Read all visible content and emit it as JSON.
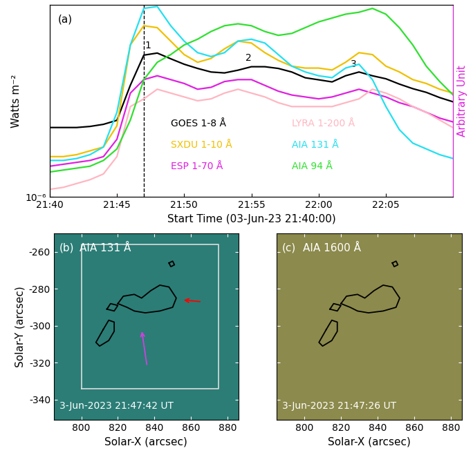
{
  "chart_data": [
    {
      "type": "line",
      "panel_label": "(a)",
      "x_label": "Start Time (03-Jun-23 21:40:00)",
      "y_label": "Watts m⁻²",
      "y2_label": "Arbitrary Unit",
      "x": [
        0,
        1,
        2,
        3,
        4,
        5,
        6,
        7,
        8,
        9,
        10,
        11,
        12,
        13,
        14,
        15,
        16,
        17,
        18,
        19,
        20,
        21,
        22,
        23,
        24,
        25,
        26,
        27,
        28,
        29,
        30
      ],
      "xlim": [
        0,
        30
      ],
      "xticks": [
        {
          "value": 0,
          "label": "21:40"
        },
        {
          "value": 5,
          "label": "21:45"
        },
        {
          "value": 10,
          "label": "21:50"
        },
        {
          "value": 15,
          "label": "21:55"
        },
        {
          "value": 20,
          "label": "22:00"
        },
        {
          "value": 25,
          "label": "22:05"
        }
      ],
      "log": "y",
      "ylim": [
        1e-06,
        2e-05
      ],
      "yticks": [
        {
          "value": 1e-06,
          "label": "10⁻⁶"
        }
      ],
      "y2lim": [
        0,
        1
      ],
      "vline": 7,
      "annotations": [
        {
          "text": "1",
          "x": 7.3
        },
        {
          "text": "2",
          "x": 14.8
        },
        {
          "text": "3",
          "x": 22.6
        }
      ],
      "series": [
        {
          "name": "GOES 1-8 Å",
          "color": "#000000",
          "values": [
            2.95e-06,
            2.95e-06,
            2.95e-06,
            3e-06,
            3.1e-06,
            3.3e-06,
            5.7e-06,
            9.1e-06,
            9.4e-06,
            8.6e-06,
            7.9e-06,
            7.4e-06,
            7e-06,
            6.9e-06,
            7.2e-06,
            7.6e-06,
            7.6e-06,
            7.4e-06,
            7e-06,
            6.4e-06,
            6.2e-06,
            6e-06,
            6.6e-06,
            7e-06,
            6.6e-06,
            6.3e-06,
            5.8e-06,
            5.4e-06,
            5.1e-06,
            4.7e-06,
            4.4e-06
          ]
        },
        {
          "name": "SXDU 1-10 Å",
          "color": "#f0c000",
          "axis": "y2",
          "values": [
            0.21,
            0.21,
            0.22,
            0.24,
            0.26,
            0.37,
            0.79,
            0.89,
            0.88,
            0.81,
            0.74,
            0.7,
            0.72,
            0.77,
            0.81,
            0.8,
            0.75,
            0.71,
            0.68,
            0.67,
            0.67,
            0.66,
            0.7,
            0.75,
            0.74,
            0.68,
            0.65,
            0.61,
            0.59,
            0.56,
            0.54
          ]
        },
        {
          "name": "ESP 1-70 Å",
          "color": "#e020e0",
          "axis": "y2",
          "values": [
            0.16,
            0.17,
            0.18,
            0.19,
            0.21,
            0.3,
            0.54,
            0.61,
            0.63,
            0.61,
            0.59,
            0.56,
            0.57,
            0.6,
            0.61,
            0.61,
            0.58,
            0.55,
            0.53,
            0.52,
            0.51,
            0.52,
            0.54,
            0.56,
            0.54,
            0.52,
            0.49,
            0.47,
            0.44,
            0.41,
            0.39
          ]
        },
        {
          "name": "LYRA 1-200 Å",
          "color": "#ffb6c1",
          "axis": "y2",
          "values": [
            0.04,
            0.05,
            0.07,
            0.09,
            0.12,
            0.21,
            0.47,
            0.51,
            0.56,
            0.54,
            0.52,
            0.5,
            0.51,
            0.54,
            0.56,
            0.54,
            0.52,
            0.49,
            0.47,
            0.47,
            0.47,
            0.47,
            0.49,
            0.51,
            0.56,
            0.54,
            0.51,
            0.47,
            0.44,
            0.4,
            0.36
          ]
        },
        {
          "name": "AIA 131 Å",
          "color": "#22e0f0",
          "axis": "y2",
          "values": [
            0.19,
            0.19,
            0.2,
            0.22,
            0.26,
            0.44,
            0.79,
            0.98,
            0.99,
            0.89,
            0.81,
            0.75,
            0.73,
            0.75,
            0.81,
            0.82,
            0.8,
            0.74,
            0.68,
            0.65,
            0.63,
            0.62,
            0.67,
            0.69,
            0.61,
            0.47,
            0.35,
            0.28,
            0.25,
            0.22,
            0.2
          ]
        },
        {
          "name": "AIA 94 Å",
          "color": "#30e030",
          "axis": "y2",
          "values": [
            0.13,
            0.14,
            0.15,
            0.16,
            0.19,
            0.25,
            0.4,
            0.61,
            0.7,
            0.74,
            0.79,
            0.82,
            0.86,
            0.89,
            0.9,
            0.89,
            0.86,
            0.84,
            0.85,
            0.88,
            0.91,
            0.93,
            0.95,
            0.96,
            0.98,
            0.95,
            0.88,
            0.79,
            0.68,
            0.6,
            0.53
          ]
        }
      ]
    },
    {
      "type": "image",
      "panel_label": "(b)",
      "title": "AIA 131 Å",
      "time": "3-Jun-2023 21:47:42 UT",
      "color": "#2b7d76",
      "x_label": "Solar-X (arcsec)",
      "y_label": "Solar-Y (arcsec)",
      "xlim": [
        785,
        886
      ],
      "ylim": [
        -351,
        -250
      ],
      "xticks": [
        800,
        820,
        840,
        860,
        880
      ],
      "yticks": [
        -340,
        -320,
        -300,
        -280,
        -260
      ],
      "box": {
        "x": [
          800,
          875
        ],
        "y": [
          -334,
          -256
        ]
      },
      "contours": [
        {
          "x": [
            820,
            823,
            829,
            833,
            838,
            843,
            848,
            852,
            850,
            843,
            835,
            829,
            825
          ],
          "y": [
            -288,
            -284,
            -283,
            -285,
            -281,
            -278,
            -279,
            -285,
            -290,
            -292,
            -293,
            -292,
            -290
          ]
        },
        {
          "x": [
            814,
            816,
            820,
            818
          ],
          "y": [
            -291,
            -288,
            -289,
            -292
          ]
        },
        {
          "x": [
            812,
            815,
            818,
            818,
            815,
            810,
            808
          ],
          "y": [
            -302,
            -297,
            -298,
            -303,
            -308,
            -311,
            -309
          ]
        },
        {
          "x": [
            848,
            850,
            851,
            849
          ],
          "y": [
            -266,
            -265,
            -267,
            -268
          ]
        }
      ],
      "arrows": [
        {
          "from": [
            866,
            -287
          ],
          "to": [
            855,
            -286
          ],
          "color": "red"
        },
        {
          "from": [
            836,
            -322
          ],
          "to": [
            833,
            -302
          ],
          "color": "#d040e0"
        }
      ]
    },
    {
      "type": "image",
      "panel_label": "(c)",
      "title": "AIA 1600 Å",
      "time": "3-Jun-2023 21:47:26 UT",
      "color": "#8c8a4c",
      "x_label": "Solar-X (arcsec)",
      "xlim": [
        785,
        886
      ],
      "ylim": [
        -351,
        -250
      ],
      "xticks": [
        800,
        820,
        840,
        860,
        880
      ],
      "yticks": [
        -340,
        -320,
        -300,
        -280,
        -260
      ],
      "tick_labels": "x",
      "contours": [
        {
          "x": [
            820,
            823,
            829,
            833,
            838,
            843,
            848,
            852,
            850,
            843,
            835,
            829,
            825
          ],
          "y": [
            -288,
            -284,
            -283,
            -285,
            -281,
            -278,
            -279,
            -285,
            -290,
            -292,
            -293,
            -292,
            -290
          ]
        },
        {
          "x": [
            814,
            816,
            820,
            818
          ],
          "y": [
            -291,
            -288,
            -289,
            -292
          ]
        },
        {
          "x": [
            812,
            815,
            818,
            818,
            815,
            810,
            808
          ],
          "y": [
            -302,
            -297,
            -298,
            -303,
            -308,
            -311,
            -309
          ]
        },
        {
          "x": [
            848,
            850,
            851,
            849
          ],
          "y": [
            -266,
            -265,
            -267,
            -268
          ]
        }
      ]
    }
  ]
}
